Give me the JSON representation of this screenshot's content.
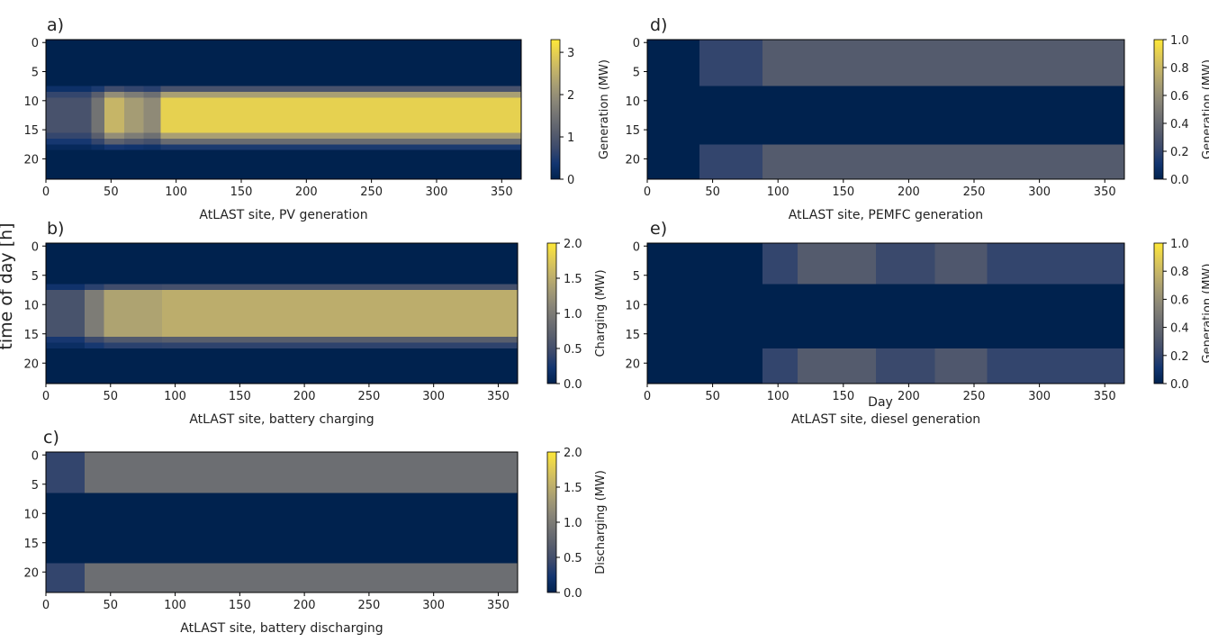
{
  "figure": {
    "ylabel": "time of day [h]",
    "day_label": "Day"
  },
  "colormap": [
    "#00224e",
    "#123570",
    "#3b496c",
    "#575d6d",
    "#707173",
    "#8a8678",
    "#a59c74",
    "#c3b369",
    "#e1cc55",
    "#fee838"
  ],
  "chart_data": [
    {
      "id": "a",
      "type": "heatmap",
      "panel_label": "a)",
      "xlabel": "AtLAST site, PV generation",
      "colorbar_label": "Generation (MW)",
      "x_range": [
        0,
        365
      ],
      "y_range": [
        0,
        23
      ],
      "x_ticks": [
        0,
        50,
        100,
        150,
        200,
        250,
        300,
        350
      ],
      "y_ticks": [
        0,
        5,
        10,
        15,
        20
      ],
      "clim": [
        0,
        3.3
      ],
      "cbar_ticks": [
        0,
        1,
        2,
        3
      ],
      "profile": {
        "day_ranges": [
          {
            "from": 0,
            "to": 35,
            "level": 0.9
          },
          {
            "from": 35,
            "to": 45,
            "level": 1.5
          },
          {
            "from": 45,
            "to": 60,
            "level": 2.6
          },
          {
            "from": 60,
            "to": 75,
            "level": 2.2
          },
          {
            "from": 75,
            "to": 88,
            "level": 1.9
          },
          {
            "from": 88,
            "to": 366,
            "level": 3.0
          }
        ],
        "hour_ranges": [
          {
            "from": 0,
            "to": 7,
            "factor": 0
          },
          {
            "from": 8,
            "to": 8,
            "factor": 0.3
          },
          {
            "from": 9,
            "to": 9,
            "factor": 0.75
          },
          {
            "from": 10,
            "to": 15,
            "factor": 1.0
          },
          {
            "from": 16,
            "to": 16,
            "factor": 0.75
          },
          {
            "from": 17,
            "to": 17,
            "factor": 0.45
          },
          {
            "from": 18,
            "to": 18,
            "factor": 0.15
          },
          {
            "from": 19,
            "to": 23,
            "factor": 0
          }
        ]
      }
    },
    {
      "id": "b",
      "type": "heatmap",
      "panel_label": "b)",
      "xlabel": "AtLAST site, battery charging",
      "colorbar_label": "Charging (MW)",
      "x_range": [
        0,
        365
      ],
      "y_range": [
        0,
        23
      ],
      "x_ticks": [
        0,
        50,
        100,
        150,
        200,
        250,
        300,
        350
      ],
      "y_ticks": [
        0,
        5,
        10,
        15,
        20
      ],
      "clim": [
        0,
        2.0
      ],
      "cbar_ticks": [
        0.0,
        0.5,
        1.0,
        1.5,
        2.0
      ],
      "profile": {
        "day_ranges": [
          {
            "from": 0,
            "to": 30,
            "level": 0.55
          },
          {
            "from": 30,
            "to": 45,
            "level": 1.0
          },
          {
            "from": 45,
            "to": 90,
            "level": 1.4
          },
          {
            "from": 90,
            "to": 366,
            "level": 1.5
          }
        ],
        "hour_ranges": [
          {
            "from": 0,
            "to": 6,
            "factor": 0
          },
          {
            "from": 7,
            "to": 7,
            "factor": 0.35
          },
          {
            "from": 8,
            "to": 15,
            "factor": 1.0
          },
          {
            "from": 16,
            "to": 16,
            "factor": 0.45
          },
          {
            "from": 17,
            "to": 17,
            "factor": 0.25
          },
          {
            "from": 18,
            "to": 23,
            "factor": 0
          }
        ]
      }
    },
    {
      "id": "c",
      "type": "heatmap",
      "panel_label": "c)",
      "xlabel": "AtLAST site, battery discharging",
      "colorbar_label": "Discharging (MW)",
      "x_range": [
        0,
        365
      ],
      "y_range": [
        0,
        23
      ],
      "x_ticks": [
        0,
        50,
        100,
        150,
        200,
        250,
        300,
        350
      ],
      "y_ticks": [
        0,
        5,
        10,
        15,
        20
      ],
      "clim": [
        0,
        2.0
      ],
      "cbar_ticks": [
        0.0,
        0.5,
        1.0,
        1.5,
        2.0
      ],
      "profile": {
        "day_ranges": [
          {
            "from": 0,
            "to": 30,
            "level": 0.4
          },
          {
            "from": 30,
            "to": 366,
            "level": 0.85
          }
        ],
        "hour_ranges": [
          {
            "from": 0,
            "to": 6,
            "factor": 1.0
          },
          {
            "from": 7,
            "to": 18,
            "factor": 0
          },
          {
            "from": 19,
            "to": 23,
            "factor": 1.0
          }
        ]
      }
    },
    {
      "id": "d",
      "type": "heatmap",
      "panel_label": "d)",
      "xlabel": "AtLAST site, PEMFC generation",
      "colorbar_label": "Generation (MW)",
      "x_range": [
        0,
        365
      ],
      "y_range": [
        0,
        23
      ],
      "x_ticks": [
        0,
        50,
        100,
        150,
        200,
        250,
        300,
        350
      ],
      "y_ticks": [
        0,
        5,
        10,
        15,
        20
      ],
      "clim": [
        0,
        1.0
      ],
      "cbar_ticks": [
        0.0,
        0.2,
        0.4,
        0.6,
        0.8,
        1.0
      ],
      "profile": {
        "day_ranges": [
          {
            "from": 0,
            "to": 40,
            "level": 0.0
          },
          {
            "from": 40,
            "to": 88,
            "level": 0.2
          },
          {
            "from": 88,
            "to": 366,
            "level": 0.32
          }
        ],
        "hour_ranges": [
          {
            "from": 0,
            "to": 7,
            "factor": 1.0
          },
          {
            "from": 8,
            "to": 17,
            "factor": 0
          },
          {
            "from": 18,
            "to": 23,
            "factor": 1.0
          }
        ]
      }
    },
    {
      "id": "e",
      "type": "heatmap",
      "panel_label": "e)",
      "xlabel": "AtLAST site, diesel generation",
      "colorbar_label": "Generation (MW)",
      "x_range": [
        0,
        365
      ],
      "y_range": [
        0,
        23
      ],
      "x_ticks": [
        0,
        50,
        100,
        150,
        200,
        250,
        300,
        350
      ],
      "y_ticks": [
        0,
        5,
        10,
        15,
        20
      ],
      "clim": [
        0,
        1.0
      ],
      "cbar_ticks": [
        0.0,
        0.2,
        0.4,
        0.6,
        0.8,
        1.0
      ],
      "profile": {
        "day_ranges": [
          {
            "from": 0,
            "to": 88,
            "level": 0.0
          },
          {
            "from": 88,
            "to": 115,
            "level": 0.2
          },
          {
            "from": 115,
            "to": 175,
            "level": 0.32
          },
          {
            "from": 175,
            "to": 220,
            "level": 0.22
          },
          {
            "from": 220,
            "to": 260,
            "level": 0.3
          },
          {
            "from": 260,
            "to": 366,
            "level": 0.2
          }
        ],
        "hour_ranges": [
          {
            "from": 0,
            "to": 6,
            "factor": 1.0
          },
          {
            "from": 7,
            "to": 17,
            "factor": 0
          },
          {
            "from": 18,
            "to": 23,
            "factor": 1.0
          }
        ]
      }
    }
  ]
}
